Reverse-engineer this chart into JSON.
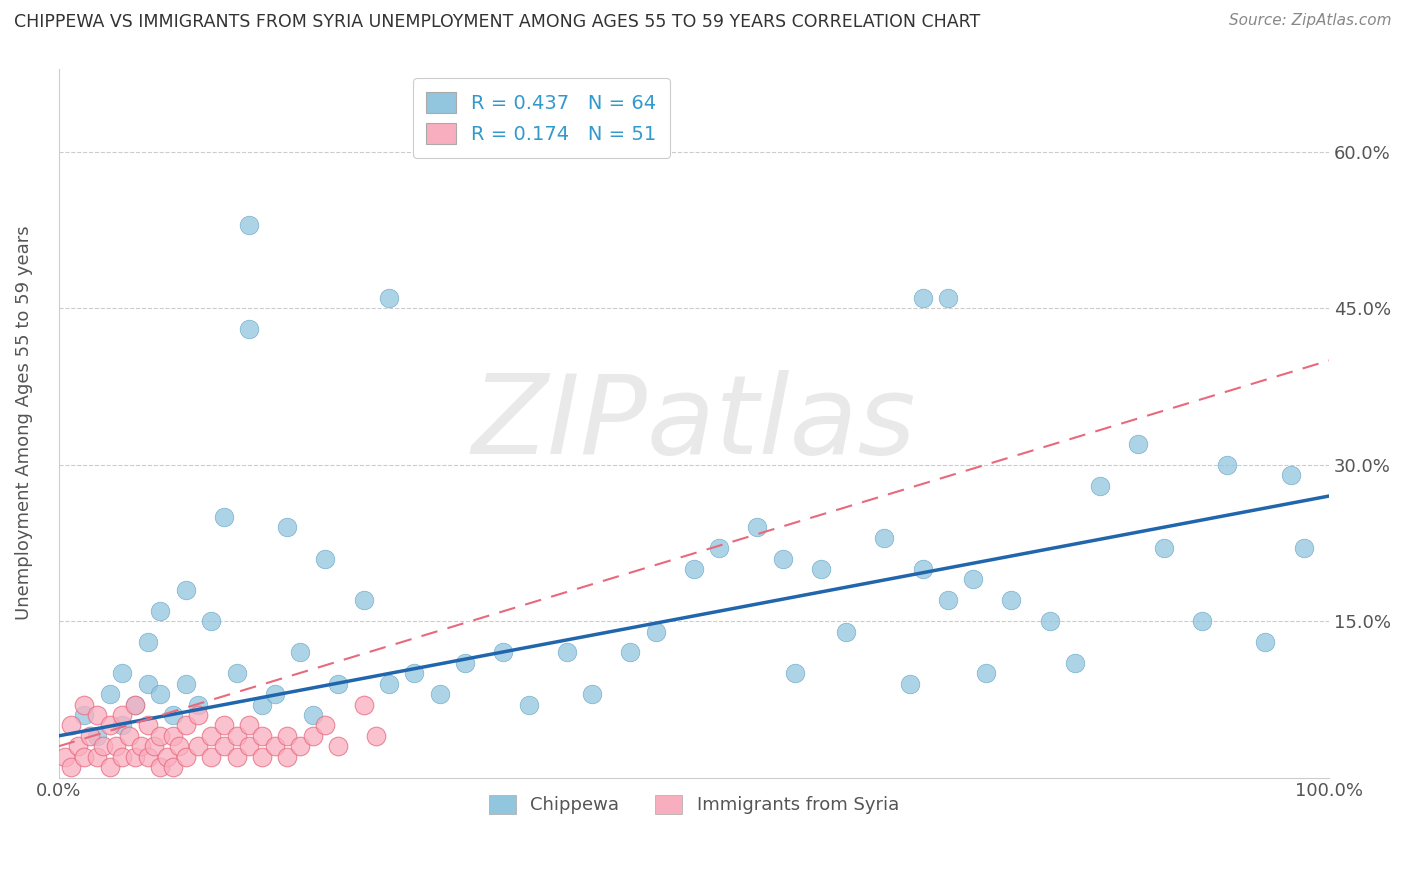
{
  "title": "CHIPPEWA VS IMMIGRANTS FROM SYRIA UNEMPLOYMENT AMONG AGES 55 TO 59 YEARS CORRELATION CHART",
  "source": "Source: ZipAtlas.com",
  "ylabel": "Unemployment Among Ages 55 to 59 years",
  "xlim": [
    0,
    100
  ],
  "ylim": [
    0,
    0.68
  ],
  "ytick_vals": [
    0.15,
    0.3,
    0.45,
    0.6
  ],
  "ytick_labels": [
    "15.0%",
    "30.0%",
    "45.0%",
    "60.0%"
  ],
  "xtick_vals": [
    0,
    100
  ],
  "xtick_labels": [
    "0.0%",
    "100.0%"
  ],
  "chippewa_R": 0.437,
  "chippewa_N": 64,
  "syria_R": 0.174,
  "syria_N": 51,
  "chippewa_color": "#92C5DE",
  "chippewa_edge_color": "#5A9EC0",
  "chippewa_line_color": "#2166AC",
  "syria_color": "#F9AEBF",
  "syria_edge_color": "#E8697D",
  "syria_line_color": "#E8697D",
  "watermark": "ZIPatlas",
  "watermark_color": "#D0D0D0",
  "chippewa_x": [
    2,
    3,
    4,
    5,
    5,
    6,
    7,
    7,
    8,
    8,
    9,
    10,
    10,
    11,
    12,
    13,
    14,
    15,
    16,
    17,
    18,
    19,
    20,
    21,
    22,
    24,
    26,
    28,
    30,
    32,
    35,
    37,
    40,
    42,
    45,
    47,
    50,
    52,
    55,
    57,
    58,
    60,
    62,
    65,
    67,
    68,
    70,
    72,
    73,
    75,
    78,
    80,
    82,
    85,
    87,
    90,
    92,
    95,
    97,
    98,
    15,
    26,
    68,
    70
  ],
  "chippewa_y": [
    0.06,
    0.04,
    0.08,
    0.05,
    0.1,
    0.07,
    0.09,
    0.13,
    0.08,
    0.16,
    0.06,
    0.09,
    0.18,
    0.07,
    0.15,
    0.25,
    0.1,
    0.53,
    0.07,
    0.08,
    0.24,
    0.12,
    0.06,
    0.21,
    0.09,
    0.17,
    0.09,
    0.1,
    0.08,
    0.11,
    0.12,
    0.07,
    0.12,
    0.08,
    0.12,
    0.14,
    0.2,
    0.22,
    0.24,
    0.21,
    0.1,
    0.2,
    0.14,
    0.23,
    0.09,
    0.2,
    0.17,
    0.19,
    0.1,
    0.17,
    0.15,
    0.11,
    0.28,
    0.32,
    0.22,
    0.15,
    0.3,
    0.13,
    0.29,
    0.22,
    0.43,
    0.46,
    0.46,
    0.46
  ],
  "syria_x": [
    0.5,
    1,
    1,
    1.5,
    2,
    2,
    2.5,
    3,
    3,
    3.5,
    4,
    4,
    4.5,
    5,
    5,
    5.5,
    6,
    6,
    6.5,
    7,
    7,
    7.5,
    8,
    8,
    8.5,
    9,
    9,
    9.5,
    10,
    10,
    11,
    11,
    12,
    12,
    13,
    13,
    14,
    14,
    15,
    15,
    16,
    16,
    17,
    18,
    18,
    19,
    20,
    21,
    22,
    24,
    25
  ],
  "syria_y": [
    0.02,
    0.01,
    0.05,
    0.03,
    0.02,
    0.07,
    0.04,
    0.02,
    0.06,
    0.03,
    0.01,
    0.05,
    0.03,
    0.02,
    0.06,
    0.04,
    0.02,
    0.07,
    0.03,
    0.02,
    0.05,
    0.03,
    0.01,
    0.04,
    0.02,
    0.01,
    0.04,
    0.03,
    0.02,
    0.05,
    0.03,
    0.06,
    0.02,
    0.04,
    0.03,
    0.05,
    0.02,
    0.04,
    0.03,
    0.05,
    0.02,
    0.04,
    0.03,
    0.04,
    0.02,
    0.03,
    0.04,
    0.05,
    0.03,
    0.07,
    0.04
  ],
  "chip_line_x0": 0,
  "chip_line_y0": 0.04,
  "chip_line_x1": 100,
  "chip_line_y1": 0.27,
  "syria_line_x0": 0,
  "syria_line_y0": 0.03,
  "syria_line_x1": 100,
  "syria_line_y1": 0.4
}
